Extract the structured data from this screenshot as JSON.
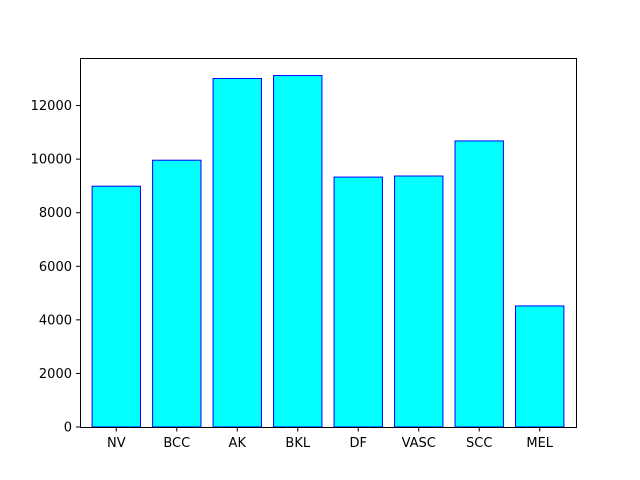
{
  "chart_data": {
    "type": "bar",
    "categories": [
      "NV",
      "BCC",
      "AK",
      "BKL",
      "DF",
      "VASC",
      "SCC",
      "MEL"
    ],
    "values": [
      8990,
      9960,
      13010,
      13120,
      9330,
      9370,
      10680,
      4520
    ],
    "title": "",
    "xlabel": "",
    "ylabel": "",
    "ylim": [
      0,
      13776
    ],
    "yticks": [
      0,
      2000,
      4000,
      6000,
      8000,
      10000,
      12000
    ],
    "bar_fill": "#00ffff",
    "bar_edge": "#0000ff",
    "grid": false,
    "legend": "none"
  }
}
